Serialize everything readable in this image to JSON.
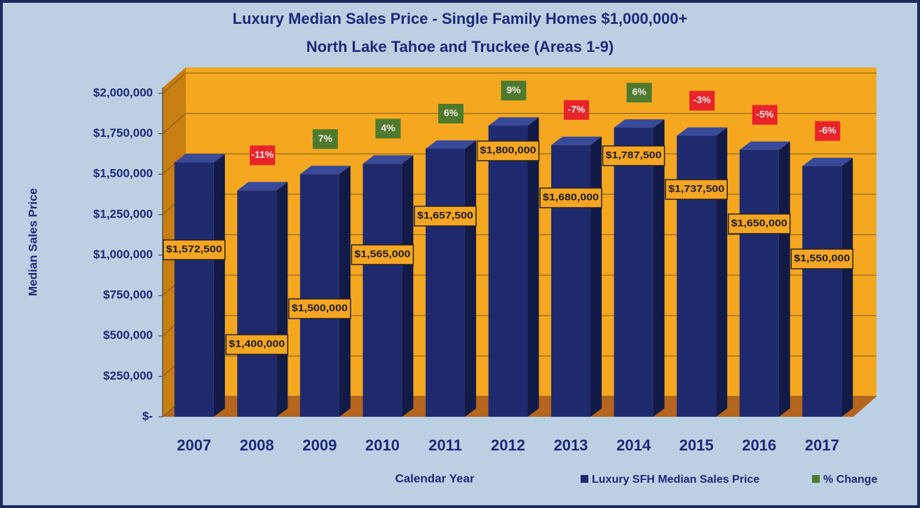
{
  "chart_data": {
    "type": "bar",
    "title": "Luxury Median Sales Price - Single Family Homes $1,000,000+",
    "subtitle": "North Lake Tahoe and Truckee (Areas 1-9)",
    "y_label": "Median Sales Price",
    "x_label": "Calendar Year",
    "categories": [
      "2007",
      "2008",
      "2009",
      "2010",
      "2011",
      "2012",
      "2013",
      "2014",
      "2015",
      "2016",
      "2017"
    ],
    "series": [
      {
        "name": "Luxury SFH Median Sales Price",
        "color": "#1f2a6e",
        "values": [
          1572500,
          1400000,
          1500000,
          1565000,
          1657500,
          1800000,
          1680000,
          1787500,
          1737500,
          1650000,
          1550000
        ],
        "value_labels": [
          "$1,572,500",
          "$1,400,000",
          "$1,500,000",
          "$1,565,000",
          "$1,657,500",
          "$1,800,000",
          "$1,680,000",
          "$1,787,500",
          "$1,737,500",
          "$1,650,000",
          "$1,550,000"
        ]
      },
      {
        "name": "% Change",
        "color": "#4e7a2e",
        "negative_color": "#e8232a",
        "values": [
          null,
          -11,
          7,
          4,
          6,
          9,
          -7,
          6,
          -3,
          -5,
          -6
        ],
        "value_labels": [
          null,
          "-11%",
          "7%",
          "4%",
          "6%",
          "9%",
          "-7%",
          "6%",
          "-3%",
          "-5%",
          "-6%"
        ]
      }
    ],
    "ylim": [
      0,
      2000000
    ],
    "yticks": [
      {
        "value": 0,
        "label": "$-"
      },
      {
        "value": 250000,
        "label": "$250,000"
      },
      {
        "value": 500000,
        "label": "$500,000"
      },
      {
        "value": 750000,
        "label": "$750,000"
      },
      {
        "value": 1000000,
        "label": "$1,000,000"
      },
      {
        "value": 1250000,
        "label": "$1,250,000"
      },
      {
        "value": 1500000,
        "label": "$1,500,000"
      },
      {
        "value": 1750000,
        "label": "$1,750,000"
      },
      {
        "value": 2000000,
        "label": "$2,000,000"
      }
    ],
    "grid": true
  }
}
